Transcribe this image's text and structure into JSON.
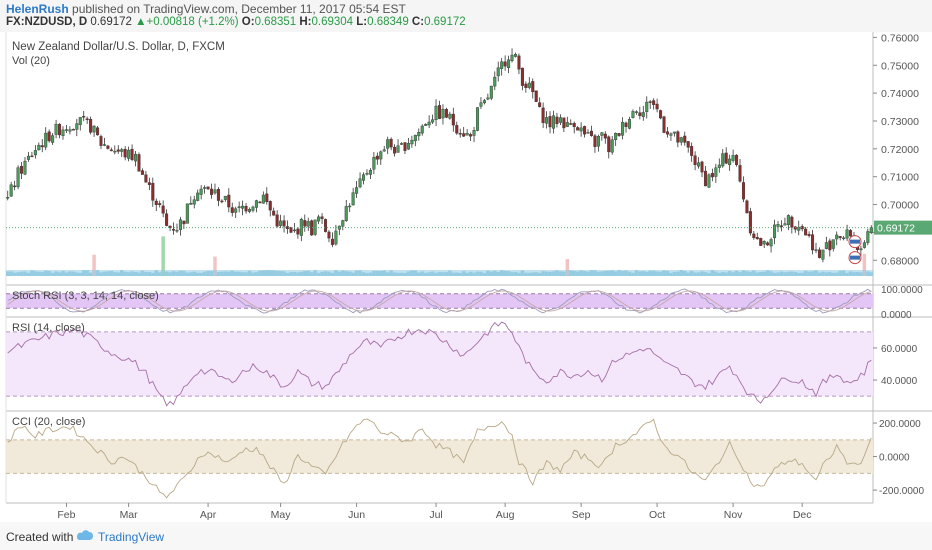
{
  "header": {
    "author": "HelenRush",
    "published": " published on TradingView.com, December 11, 2017 05:54 EST",
    "symbol": "FX:NZDUSD, D",
    "last": "0.69172",
    "change": "+0.00818 (+1.2%)",
    "o_label": "O:",
    "o_val": "0.68351",
    "h_label": "H:",
    "h_val": "0.69304",
    "l_label": "L:",
    "l_val": "0.68349",
    "c_label": "C:",
    "c_val": "0.69172"
  },
  "footer": {
    "created": "Created with",
    "brand": "TradingView"
  },
  "colors": {
    "up": "#4a9a5a",
    "down": "#8b2d2d",
    "volume": "#8ec8e0",
    "rsi": "#a470a4",
    "stoch_band": "#e3c6f6",
    "rsi_band": "#f4e6fb",
    "cci_band": "#f1eadb",
    "cci": "#b8a886",
    "price_tag": "#5aa873"
  },
  "chart_data": [
    {
      "type": "candlestick",
      "title": "New Zealand Dollar/U.S. Dollar, D, FXCM",
      "volume_label": "Vol (20)",
      "y_ticks": [
        "0.76000",
        "0.75000",
        "0.74000",
        "0.73000",
        "0.72000",
        "0.71000",
        "0.70000",
        "0.69000",
        "0.68000"
      ],
      "ylim": [
        0.674,
        0.7605
      ],
      "last_price_label": "0.69172",
      "x_ticks": [
        "Feb",
        "Mar",
        "Apr",
        "May",
        "Jun",
        "Jul",
        "Aug",
        "Sep",
        "Oct",
        "Nov",
        "Dec"
      ],
      "anchors": [
        [
          0,
          0.702
        ],
        [
          3,
          0.711
        ],
        [
          8,
          0.72
        ],
        [
          13,
          0.726
        ],
        [
          20,
          0.73
        ],
        [
          24,
          0.728
        ],
        [
          27,
          0.722
        ],
        [
          32,
          0.719
        ],
        [
          37,
          0.717
        ],
        [
          40,
          0.708
        ],
        [
          44,
          0.699
        ],
        [
          46,
          0.692
        ],
        [
          49,
          0.692
        ],
        [
          51,
          0.695
        ],
        [
          53,
          0.702
        ],
        [
          55,
          0.706
        ],
        [
          60,
          0.704
        ],
        [
          64,
          0.7
        ],
        [
          66,
          0.697
        ],
        [
          68,
          0.699
        ],
        [
          70,
          0.7
        ],
        [
          74,
          0.703
        ],
        [
          76,
          0.698
        ],
        [
          78,
          0.694
        ],
        [
          82,
          0.689
        ],
        [
          86,
          0.694
        ],
        [
          88,
          0.691
        ],
        [
          90,
          0.695
        ],
        [
          92,
          0.691
        ],
        [
          94,
          0.688
        ],
        [
          96,
          0.694
        ],
        [
          99,
          0.701
        ],
        [
          102,
          0.707
        ],
        [
          104,
          0.712
        ],
        [
          107,
          0.718
        ],
        [
          110,
          0.722
        ],
        [
          113,
          0.719
        ],
        [
          116,
          0.723
        ],
        [
          119,
          0.726
        ],
        [
          121,
          0.73
        ],
        [
          124,
          0.733
        ],
        [
          127,
          0.732
        ],
        [
          130,
          0.728
        ],
        [
          132,
          0.726
        ],
        [
          134,
          0.724
        ],
        [
          136,
          0.733
        ],
        [
          138,
          0.736
        ],
        [
          141,
          0.744
        ],
        [
          143,
          0.75
        ],
        [
          145,
          0.754
        ],
        [
          147,
          0.752
        ],
        [
          149,
          0.745
        ],
        [
          152,
          0.74
        ],
        [
          154,
          0.733
        ],
        [
          157,
          0.729
        ],
        [
          160,
          0.731
        ],
        [
          162,
          0.728
        ],
        [
          164,
          0.73
        ],
        [
          167,
          0.725
        ],
        [
          170,
          0.722
        ],
        [
          172,
          0.725
        ],
        [
          174,
          0.72
        ],
        [
          177,
          0.726
        ],
        [
          179,
          0.73
        ],
        [
          182,
          0.735
        ],
        [
          184,
          0.733
        ],
        [
          186,
          0.738
        ],
        [
          188,
          0.734
        ],
        [
          190,
          0.728
        ],
        [
          193,
          0.724
        ],
        [
          196,
          0.721
        ],
        [
          198,
          0.718
        ],
        [
          200,
          0.713
        ],
        [
          202,
          0.709
        ],
        [
          205,
          0.712
        ],
        [
          207,
          0.716
        ],
        [
          210,
          0.718
        ],
        [
          211,
          0.713
        ],
        [
          213,
          0.703
        ],
        [
          215,
          0.692
        ],
        [
          217,
          0.687
        ],
        [
          219,
          0.685
        ],
        [
          221,
          0.689
        ],
        [
          223,
          0.692
        ],
        [
          225,
          0.695
        ],
        [
          227,
          0.694
        ],
        [
          229,
          0.693
        ],
        [
          231,
          0.69
        ],
        [
          233,
          0.686
        ],
        [
          235,
          0.68
        ],
        [
          236,
          0.684
        ],
        [
          238,
          0.686
        ],
        [
          240,
          0.69
        ],
        [
          242,
          0.688
        ],
        [
          244,
          0.69
        ],
        [
          246,
          0.685
        ],
        [
          248,
          0.684
        ],
        [
          250,
          0.692
        ]
      ],
      "volume_spikes": [
        [
          45,
          1.0
        ],
        [
          25,
          0.5
        ],
        [
          60,
          0.4
        ],
        [
          162,
          0.4
        ],
        [
          248,
          0.5
        ]
      ]
    },
    {
      "type": "line",
      "title": "Stoch RSI (3, 3, 14, 14, close)",
      "y_ticks": [
        "100.0000",
        "0.0000"
      ],
      "ylim": [
        0,
        100
      ],
      "band": [
        20,
        80
      ]
    },
    {
      "type": "line",
      "title": "RSI (14, close)",
      "y_ticks": [
        "60.0000",
        "40.0000"
      ],
      "ylim": [
        22,
        78
      ],
      "band": [
        30,
        70
      ],
      "anchors": [
        [
          0,
          58
        ],
        [
          6,
          63
        ],
        [
          14,
          69
        ],
        [
          20,
          71
        ],
        [
          24,
          66
        ],
        [
          30,
          57
        ],
        [
          36,
          52
        ],
        [
          40,
          44
        ],
        [
          44,
          30
        ],
        [
          46,
          24
        ],
        [
          49,
          28
        ],
        [
          52,
          38
        ],
        [
          55,
          46
        ],
        [
          60,
          44
        ],
        [
          64,
          39
        ],
        [
          68,
          45
        ],
        [
          72,
          49
        ],
        [
          76,
          43
        ],
        [
          80,
          36
        ],
        [
          84,
          45
        ],
        [
          88,
          38
        ],
        [
          92,
          36
        ],
        [
          96,
          46
        ],
        [
          100,
          58
        ],
        [
          104,
          64
        ],
        [
          108,
          60
        ],
        [
          112,
          66
        ],
        [
          116,
          70
        ],
        [
          120,
          72
        ],
        [
          124,
          68
        ],
        [
          128,
          62
        ],
        [
          132,
          55
        ],
        [
          136,
          64
        ],
        [
          140,
          72
        ],
        [
          143,
          76
        ],
        [
          146,
          70
        ],
        [
          148,
          60
        ],
        [
          152,
          45
        ],
        [
          156,
          40
        ],
        [
          160,
          45
        ],
        [
          164,
          43
        ],
        [
          168,
          46
        ],
        [
          172,
          41
        ],
        [
          176,
          53
        ],
        [
          180,
          56
        ],
        [
          184,
          60
        ],
        [
          187,
          57
        ],
        [
          190,
          50
        ],
        [
          194,
          46
        ],
        [
          198,
          39
        ],
        [
          202,
          36
        ],
        [
          206,
          43
        ],
        [
          209,
          49
        ],
        [
          212,
          40
        ],
        [
          215,
          30
        ],
        [
          218,
          27
        ],
        [
          222,
          36
        ],
        [
          226,
          42
        ],
        [
          230,
          39
        ],
        [
          234,
          32
        ],
        [
          236,
          38
        ],
        [
          240,
          44
        ],
        [
          244,
          38
        ],
        [
          248,
          45
        ],
        [
          250,
          53
        ]
      ]
    },
    {
      "type": "line",
      "title": "CCI (20, close)",
      "y_ticks": [
        "200.0000",
        "0.0000",
        "-200.0000"
      ],
      "ylim": [
        -265,
        260
      ],
      "band": [
        -100,
        100
      ],
      "anchors": [
        [
          0,
          90
        ],
        [
          4,
          190
        ],
        [
          8,
          120
        ],
        [
          12,
          160
        ],
        [
          18,
          180
        ],
        [
          22,
          110
        ],
        [
          26,
          40
        ],
        [
          30,
          -30
        ],
        [
          34,
          0
        ],
        [
          38,
          -80
        ],
        [
          42,
          -160
        ],
        [
          44,
          -220
        ],
        [
          46,
          -240
        ],
        [
          48,
          -200
        ],
        [
          52,
          -110
        ],
        [
          56,
          20
        ],
        [
          60,
          10
        ],
        [
          64,
          -40
        ],
        [
          68,
          40
        ],
        [
          72,
          50
        ],
        [
          76,
          -60
        ],
        [
          80,
          -170
        ],
        [
          84,
          10
        ],
        [
          88,
          -60
        ],
        [
          92,
          -110
        ],
        [
          96,
          40
        ],
        [
          100,
          160
        ],
        [
          104,
          230
        ],
        [
          108,
          150
        ],
        [
          112,
          120
        ],
        [
          116,
          90
        ],
        [
          120,
          170
        ],
        [
          124,
          70
        ],
        [
          128,
          30
        ],
        [
          132,
          -40
        ],
        [
          136,
          150
        ],
        [
          140,
          190
        ],
        [
          143,
          210
        ],
        [
          146,
          130
        ],
        [
          148,
          -30
        ],
        [
          152,
          -150
        ],
        [
          156,
          -40
        ],
        [
          160,
          -80
        ],
        [
          164,
          20
        ],
        [
          168,
          -10
        ],
        [
          172,
          -60
        ],
        [
          176,
          70
        ],
        [
          180,
          110
        ],
        [
          184,
          170
        ],
        [
          187,
          220
        ],
        [
          190,
          60
        ],
        [
          194,
          10
        ],
        [
          198,
          -90
        ],
        [
          202,
          -150
        ],
        [
          206,
          -20
        ],
        [
          209,
          70
        ],
        [
          212,
          -20
        ],
        [
          215,
          -150
        ],
        [
          218,
          -190
        ],
        [
          222,
          -80
        ],
        [
          226,
          -20
        ],
        [
          230,
          -40
        ],
        [
          234,
          -150
        ],
        [
          236,
          -60
        ],
        [
          240,
          60
        ],
        [
          244,
          -60
        ],
        [
          248,
          -10
        ],
        [
          250,
          130
        ]
      ]
    }
  ]
}
